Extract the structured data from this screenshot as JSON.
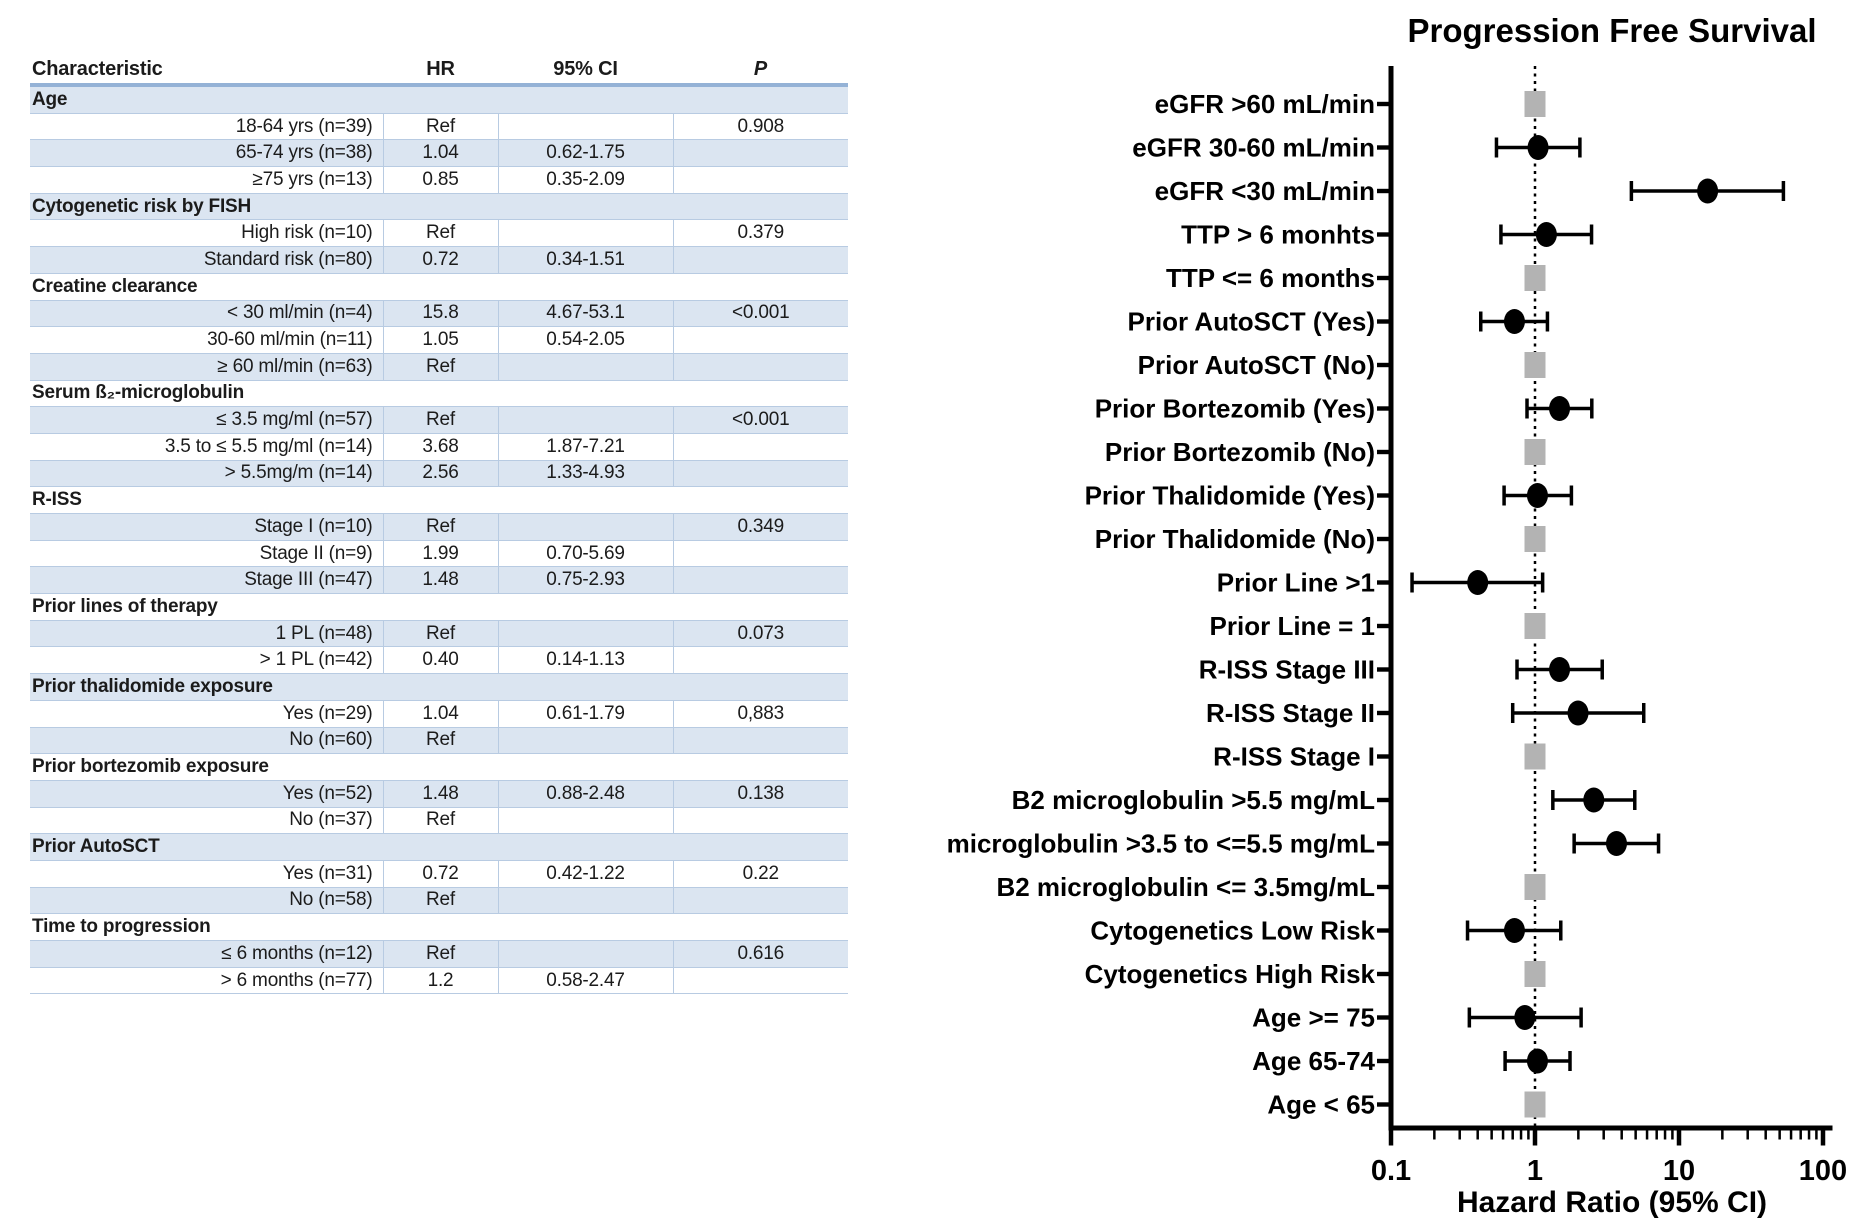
{
  "colors": {
    "stripe": "#dbe5f1",
    "row_line": "#b8cbe2",
    "header_line": "#94b2d6",
    "ref_marker": "#b3b3b3",
    "point_marker": "#000000"
  },
  "table": {
    "headers": {
      "characteristic": "Characteristic",
      "hr": "HR",
      "ci": "95% CI",
      "p": "P"
    },
    "rows": [
      {
        "cat": true,
        "label": "Age"
      },
      {
        "label": "18-64 yrs (n=39)",
        "hr": "Ref",
        "ci": "",
        "p": "0.908"
      },
      {
        "label": "65-74 yrs (n=38)",
        "hr": "1.04",
        "ci": "0.62-1.75",
        "p": ""
      },
      {
        "label": "≥75 yrs (n=13)",
        "hr": "0.85",
        "ci": "0.35-2.09",
        "p": ""
      },
      {
        "cat": true,
        "label": "Cytogenetic risk by FISH"
      },
      {
        "label": "High risk (n=10)",
        "hr": "Ref",
        "ci": "",
        "p": "0.379"
      },
      {
        "label": "Standard risk (n=80)",
        "hr": "0.72",
        "ci": "0.34-1.51",
        "p": ""
      },
      {
        "cat": true,
        "label": "Creatine clearance"
      },
      {
        "label": "< 30 ml/min (n=4)",
        "hr": "15.8",
        "ci": "4.67-53.1",
        "p": "<0.001"
      },
      {
        "label": "30-60 ml/min (n=11)",
        "hr": "1.05",
        "ci": "0.54-2.05",
        "p": ""
      },
      {
        "label": "≥ 60 ml/min (n=63)",
        "hr": "Ref",
        "ci": "",
        "p": ""
      },
      {
        "cat": true,
        "label": "Serum ß₂-microglobulin"
      },
      {
        "label": "≤ 3.5 mg/ml (n=57)",
        "hr": "Ref",
        "ci": "",
        "p": "<0.001"
      },
      {
        "label": "3.5 to ≤ 5.5 mg/ml (n=14)",
        "hr": "3.68",
        "ci": "1.87-7.21",
        "p": ""
      },
      {
        "label": "> 5.5mg/m (n=14)",
        "hr": "2.56",
        "ci": "1.33-4.93",
        "p": ""
      },
      {
        "cat": true,
        "label": "R-ISS"
      },
      {
        "label": "Stage I (n=10)",
        "hr": "Ref",
        "ci": "",
        "p": "0.349"
      },
      {
        "label": "Stage II (n=9)",
        "hr": "1.99",
        "ci": "0.70-5.69",
        "p": ""
      },
      {
        "label": "Stage III (n=47)",
        "hr": "1.48",
        "ci": "0.75-2.93",
        "p": ""
      },
      {
        "cat": true,
        "label": "Prior lines of therapy"
      },
      {
        "label": "1 PL (n=48)",
        "hr": "Ref",
        "ci": "",
        "p": "0.073"
      },
      {
        "label": "> 1 PL (n=42)",
        "hr": "0.40",
        "ci": "0.14-1.13",
        "p": ""
      },
      {
        "cat": true,
        "label": "Prior thalidomide exposure"
      },
      {
        "label": "Yes (n=29)",
        "hr": "1.04",
        "ci": "0.61-1.79",
        "p": "0,883"
      },
      {
        "label": "No (n=60)",
        "hr": "Ref",
        "ci": "",
        "p": ""
      },
      {
        "cat": true,
        "label": "Prior bortezomib exposure"
      },
      {
        "label": "Yes (n=52)",
        "hr": "1.48",
        "ci": "0.88-2.48",
        "p": "0.138"
      },
      {
        "label": "No (n=37)",
        "hr": "Ref",
        "ci": "",
        "p": ""
      },
      {
        "cat": true,
        "label": "Prior AutoSCT"
      },
      {
        "label": "Yes (n=31)",
        "hr": "0.72",
        "ci": "0.42-1.22",
        "p": "0.22"
      },
      {
        "label": "No (n=58)",
        "hr": "Ref",
        "ci": "",
        "p": ""
      },
      {
        "cat": true,
        "label": "Time to progression"
      },
      {
        "label": "≤ 6 months (n=12)",
        "hr": "Ref",
        "ci": "",
        "p": "0.616"
      },
      {
        "label": "> 6 months (n=77)",
        "hr": "1.2",
        "ci": "0.58-2.47",
        "p": ""
      }
    ]
  },
  "chart_data": {
    "type": "scatter",
    "subtype": "forest",
    "title": "Progression Free Survival",
    "xlabel": "Hazard Ratio (95% CI)",
    "xscale": "log",
    "xlim": [
      0.1,
      100
    ],
    "xticks": [
      0.1,
      1,
      10,
      100
    ],
    "xtick_labels": [
      "0.1",
      "1",
      "10",
      "100"
    ],
    "reference_line": 1,
    "grid": false,
    "items": [
      {
        "label": "eGFR >60 mL/min",
        "ref": true,
        "hr": 1
      },
      {
        "label": "eGFR 30-60 mL/min",
        "hr": 1.05,
        "lo": 0.54,
        "hi": 2.05
      },
      {
        "label": "eGFR <30 mL/min",
        "hr": 15.8,
        "lo": 4.67,
        "hi": 53.1
      },
      {
        "label": "TTP > 6 monhts",
        "hr": 1.2,
        "lo": 0.58,
        "hi": 2.47
      },
      {
        "label": "TTP <= 6 months",
        "ref": true,
        "hr": 1
      },
      {
        "label": "Prior AutoSCT (Yes)",
        "hr": 0.72,
        "lo": 0.42,
        "hi": 1.22
      },
      {
        "label": "Prior AutoSCT (No)",
        "ref": true,
        "hr": 1
      },
      {
        "label": "Prior Bortezomib (Yes)",
        "hr": 1.48,
        "lo": 0.88,
        "hi": 2.48
      },
      {
        "label": "Prior Bortezomib (No)",
        "ref": true,
        "hr": 1
      },
      {
        "label": "Prior Thalidomide (Yes)",
        "hr": 1.04,
        "lo": 0.61,
        "hi": 1.79
      },
      {
        "label": "Prior Thalidomide (No)",
        "ref": true,
        "hr": 1
      },
      {
        "label": "Prior Line >1",
        "hr": 0.4,
        "lo": 0.14,
        "hi": 1.13
      },
      {
        "label": "Prior Line = 1",
        "ref": true,
        "hr": 1
      },
      {
        "label": "R-ISS Stage III",
        "hr": 1.48,
        "lo": 0.75,
        "hi": 2.93
      },
      {
        "label": "R-ISS Stage II",
        "hr": 1.99,
        "lo": 0.7,
        "hi": 5.69
      },
      {
        "label": "R-ISS Stage I",
        "ref": true,
        "hr": 1
      },
      {
        "label": "B2 microglobulin >5.5 mg/mL",
        "hr": 2.56,
        "lo": 1.33,
        "hi": 4.93
      },
      {
        "label": "microglobulin >3.5 to <=5.5 mg/mL",
        "hr": 3.68,
        "lo": 1.87,
        "hi": 7.21
      },
      {
        "label": "B2 microglobulin <= 3.5mg/mL",
        "ref": true,
        "hr": 1
      },
      {
        "label": "Cytogenetics Low Risk",
        "hr": 0.72,
        "lo": 0.34,
        "hi": 1.51
      },
      {
        "label": "Cytogenetics High Risk",
        "ref": true,
        "hr": 1
      },
      {
        "label": "Age >= 75",
        "hr": 0.85,
        "lo": 0.35,
        "hi": 2.09
      },
      {
        "label": "Age 65-74",
        "hr": 1.04,
        "lo": 0.62,
        "hi": 1.75
      },
      {
        "label": "Age < 65",
        "ref": true,
        "hr": 1
      }
    ]
  }
}
